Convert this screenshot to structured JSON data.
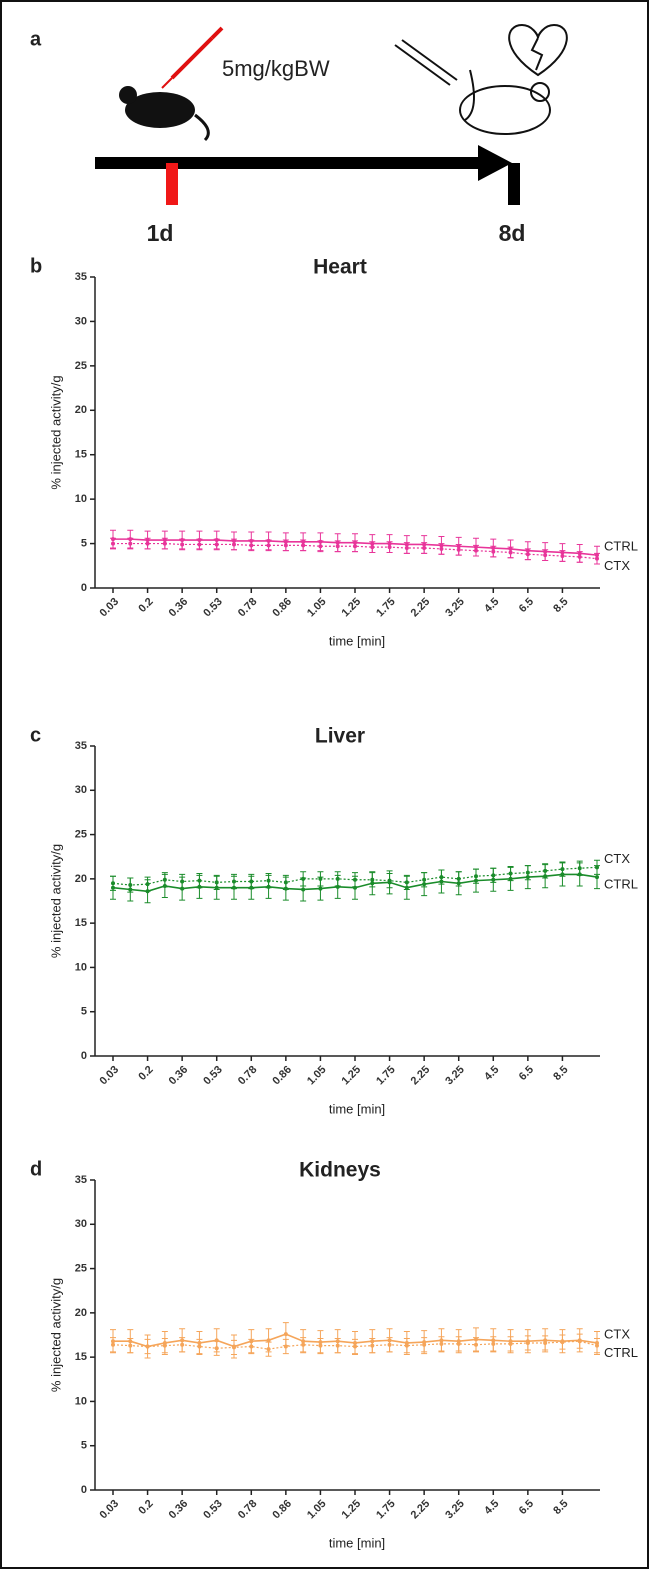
{
  "panel_a": {
    "label": "a",
    "dose": "5mg/kgBW",
    "day_start": "1d",
    "day_end": "8d"
  },
  "chart_data": [
    {
      "type": "line",
      "panel": "b",
      "title": "Heart",
      "x_label": "time [min]",
      "y_label": "% injected activity/g",
      "categories": [
        "0.03",
        null,
        "0.2",
        null,
        "0.36",
        null,
        "0.53",
        null,
        "0.78",
        null,
        "0.86",
        null,
        "1.05",
        null,
        "1.25",
        null,
        "1.75",
        null,
        "2.25",
        null,
        "3.25",
        null,
        "4.5",
        null,
        "6.5",
        null,
        "8.5",
        null,
        null
      ],
      "ylim": [
        0,
        35
      ],
      "yticks": [
        0,
        5,
        10,
        15,
        20,
        25,
        30,
        35
      ],
      "series": [
        {
          "name": "CTRL",
          "color": "#e8359a",
          "dashed": false,
          "error": 1.0,
          "values": [
            5.5,
            5.5,
            5.4,
            5.4,
            5.4,
            5.4,
            5.4,
            5.3,
            5.3,
            5.3,
            5.2,
            5.2,
            5.2,
            5.1,
            5.1,
            5.0,
            5.0,
            4.9,
            4.9,
            4.8,
            4.7,
            4.6,
            4.5,
            4.4,
            4.2,
            4.1,
            4.0,
            3.9,
            3.7
          ]
        },
        {
          "name": "CTX",
          "color": "#e8359a",
          "dashed": true,
          "error": 0.6,
          "values": [
            5.0,
            5.0,
            5.0,
            5.0,
            4.9,
            4.9,
            4.9,
            4.9,
            4.8,
            4.8,
            4.8,
            4.8,
            4.7,
            4.7,
            4.7,
            4.6,
            4.6,
            4.5,
            4.5,
            4.4,
            4.3,
            4.2,
            4.1,
            4.0,
            3.8,
            3.7,
            3.6,
            3.5,
            3.3
          ]
        }
      ]
    },
    {
      "type": "line",
      "panel": "c",
      "title": "Liver",
      "x_label": "time [min]",
      "y_label": "% injected activity/g",
      "categories": [
        "0.03",
        null,
        "0.2",
        null,
        "0.36",
        null,
        "0.53",
        null,
        "0.78",
        null,
        "0.86",
        null,
        "1.05",
        null,
        "1.25",
        null,
        "1.75",
        null,
        "2.25",
        null,
        "3.25",
        null,
        "4.5",
        null,
        "6.5",
        null,
        "8.5",
        null,
        null
      ],
      "ylim": [
        0,
        35
      ],
      "yticks": [
        0,
        5,
        10,
        15,
        20,
        25,
        30,
        35
      ],
      "series": [
        {
          "name": "CTX",
          "color": "#1a8c2a",
          "dashed": true,
          "error": 0.8,
          "values": [
            19.5,
            19.3,
            19.4,
            19.9,
            19.7,
            19.8,
            19.6,
            19.7,
            19.7,
            19.8,
            19.6,
            20.0,
            20.0,
            20.0,
            19.9,
            19.9,
            19.8,
            19.6,
            19.9,
            20.2,
            20.0,
            20.3,
            20.4,
            20.6,
            20.7,
            20.9,
            21.1,
            21.2,
            21.3
          ]
        },
        {
          "name": "CTRL",
          "color": "#1a8c2a",
          "dashed": false,
          "error": 1.3,
          "values": [
            19.0,
            18.8,
            18.6,
            19.2,
            18.9,
            19.1,
            19.0,
            19.0,
            19.0,
            19.1,
            18.9,
            18.8,
            18.9,
            19.1,
            19.0,
            19.5,
            19.6,
            19.0,
            19.4,
            19.7,
            19.5,
            19.8,
            19.9,
            20.0,
            20.2,
            20.3,
            20.5,
            20.5,
            20.2
          ]
        }
      ]
    },
    {
      "type": "line",
      "panel": "d",
      "title": "Kidneys",
      "x_label": "time [min]",
      "y_label": "% injected activity/g",
      "categories": [
        "0.03",
        null,
        "0.2",
        null,
        "0.36",
        null,
        "0.53",
        null,
        "0.78",
        null,
        "0.86",
        null,
        "1.05",
        null,
        "1.25",
        null,
        "1.75",
        null,
        "2.25",
        null,
        "3.25",
        null,
        "4.5",
        null,
        "6.5",
        null,
        "8.5",
        null,
        null
      ],
      "ylim": [
        0,
        35
      ],
      "yticks": [
        0,
        5,
        10,
        15,
        20,
        25,
        30,
        35
      ],
      "series": [
        {
          "name": "CTX",
          "color": "#f5a55a",
          "dashed": false,
          "error": 1.3,
          "values": [
            16.8,
            16.8,
            16.2,
            16.6,
            16.9,
            16.6,
            16.9,
            16.2,
            16.8,
            16.9,
            17.6,
            16.8,
            16.7,
            16.8,
            16.6,
            16.8,
            16.9,
            16.6,
            16.7,
            16.9,
            16.8,
            17.0,
            16.9,
            16.8,
            16.8,
            16.9,
            16.8,
            16.9,
            16.6
          ]
        },
        {
          "name": "CTRL",
          "color": "#f5a55a",
          "dashed": true,
          "error": 0.8,
          "values": [
            16.4,
            16.3,
            16.2,
            16.3,
            16.4,
            16.2,
            16.0,
            16.1,
            16.2,
            15.9,
            16.2,
            16.4,
            16.3,
            16.3,
            16.2,
            16.3,
            16.4,
            16.3,
            16.4,
            16.5,
            16.5,
            16.4,
            16.5,
            16.5,
            16.6,
            16.6,
            16.7,
            16.8,
            16.3
          ]
        }
      ]
    }
  ]
}
